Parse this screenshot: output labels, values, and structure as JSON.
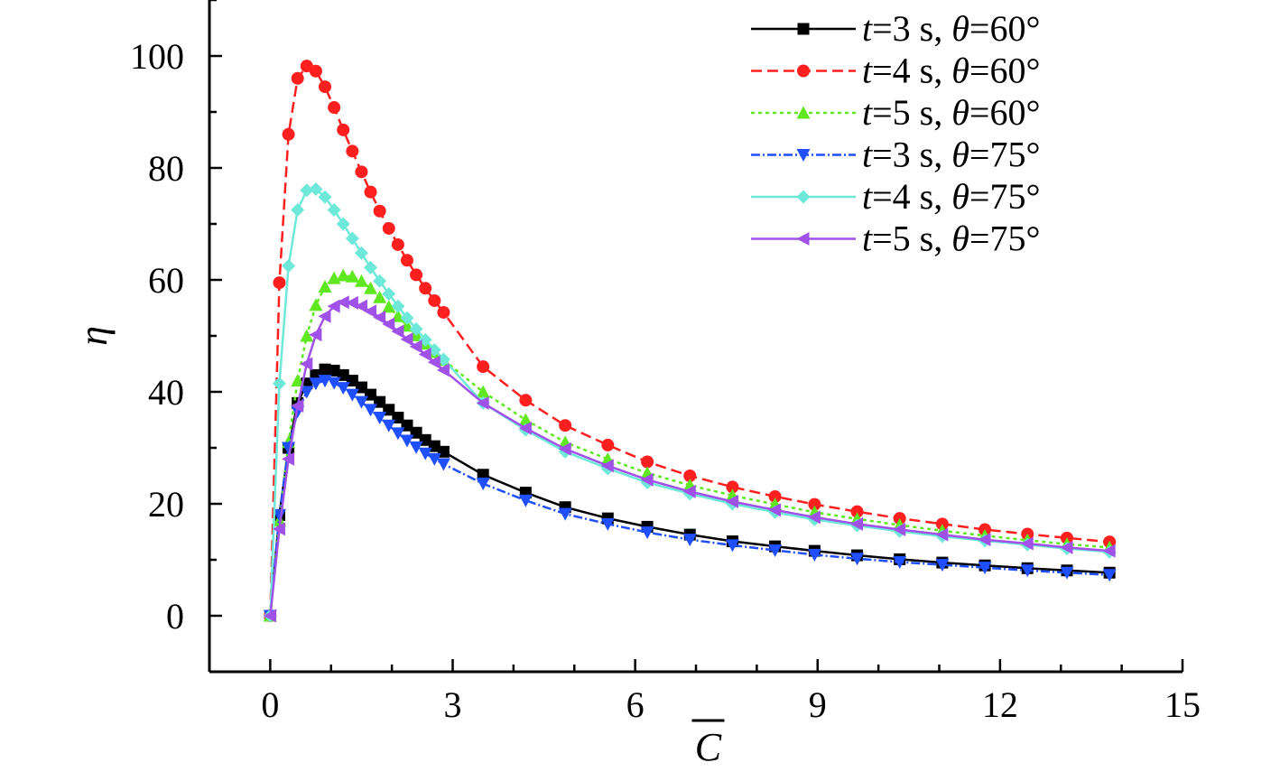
{
  "chart_data": {
    "type": "line",
    "xlabel": "C",
    "ylabel": "η",
    "xlim": [
      -1,
      15
    ],
    "ylim": [
      -10,
      110
    ],
    "x_ticks": [
      0,
      3,
      6,
      9,
      12,
      15
    ],
    "y_ticks": [
      0,
      20,
      40,
      60,
      80,
      100
    ],
    "grid": false,
    "legend_position": "top-right",
    "series": [
      {
        "name": "t=3 s, θ=60°",
        "legend": {
          "v1": "t",
          "eq1": "=3 s, ",
          "v2": "θ",
          "eq2": "=60°"
        },
        "color": "#000000",
        "dash": "",
        "marker": "square",
        "x": [
          0,
          0.15,
          0.3,
          0.45,
          0.6,
          0.75,
          0.9,
          1.05,
          1.2,
          1.35,
          1.5,
          1.65,
          1.8,
          1.95,
          2.1,
          2.25,
          2.4,
          2.55,
          2.7,
          2.85,
          3.5,
          4.2,
          4.85,
          5.55,
          6.2,
          6.9,
          7.6,
          8.3,
          8.95,
          9.65,
          10.35,
          11.05,
          11.75,
          12.45,
          13.1,
          13.8
        ],
        "y": [
          0,
          18,
          30,
          38,
          41.5,
          43,
          44,
          43.8,
          43,
          42,
          40.8,
          39.5,
          38.2,
          36.8,
          35.4,
          34,
          32.7,
          31.4,
          30.3,
          29.3,
          25.2,
          22,
          19.4,
          17.4,
          15.9,
          14.5,
          13.3,
          12.4,
          11.6,
          10.8,
          10.1,
          9.5,
          9,
          8.5,
          8.1,
          7.7
        ]
      },
      {
        "name": "t=4 s, θ=60°",
        "legend": {
          "v1": "t",
          "eq1": "=4 s, ",
          "v2": "θ",
          "eq2": "=60°"
        },
        "color": "#ff1f1f",
        "dash": "12,6",
        "marker": "circle",
        "x": [
          0,
          0.15,
          0.3,
          0.45,
          0.6,
          0.75,
          0.9,
          1.05,
          1.2,
          1.35,
          1.5,
          1.65,
          1.8,
          1.95,
          2.1,
          2.25,
          2.4,
          2.55,
          2.7,
          2.85,
          3.5,
          4.2,
          4.85,
          5.55,
          6.2,
          6.9,
          7.6,
          8.3,
          8.95,
          9.65,
          10.35,
          11.05,
          11.75,
          12.45,
          13.1,
          13.8
        ],
        "y": [
          0,
          59.5,
          86,
          96,
          98.2,
          97.3,
          94.5,
          90.8,
          86.8,
          83,
          79.3,
          75.7,
          72.3,
          69.2,
          66.3,
          63.5,
          60.9,
          58.5,
          56.3,
          54.2,
          44.5,
          38.5,
          34,
          30.5,
          27.5,
          25,
          23,
          21.3,
          19.9,
          18.6,
          17.4,
          16.4,
          15.4,
          14.6,
          13.9,
          13.2
        ]
      },
      {
        "name": "t=5 s, θ=60°",
        "legend": {
          "v1": "t",
          "eq1": "=5 s, ",
          "v2": "θ",
          "eq2": "=60°"
        },
        "color": "#5fe81f",
        "dash": "4,4",
        "marker": "triangle-up",
        "x": [
          0,
          0.15,
          0.3,
          0.45,
          0.6,
          0.75,
          0.9,
          1.05,
          1.2,
          1.35,
          1.5,
          1.65,
          1.8,
          1.95,
          2.1,
          2.25,
          2.4,
          2.55,
          2.7,
          2.85,
          3.5,
          4.2,
          4.85,
          5.55,
          6.2,
          6.9,
          7.6,
          8.3,
          8.95,
          9.65,
          10.35,
          11.05,
          11.75,
          12.45,
          13.1,
          13.8
        ],
        "y": [
          0,
          17,
          31,
          42,
          50,
          55.5,
          58.8,
          60.3,
          60.8,
          60.6,
          59.8,
          58.5,
          56.9,
          55.2,
          53.5,
          51.8,
          50.1,
          48.6,
          47.1,
          45.7,
          40,
          35,
          31,
          28,
          25.5,
          23.3,
          21.5,
          19.9,
          18.5,
          17.3,
          16.2,
          15.2,
          14.3,
          13.5,
          12.8,
          12.2
        ]
      },
      {
        "name": "t=3 s, θ=75°",
        "legend": {
          "v1": "t",
          "eq1": "=3 s, ",
          "v2": "θ",
          "eq2": "=75°"
        },
        "color": "#1f4fff",
        "dash": "10,3,2,3",
        "marker": "triangle-down",
        "x": [
          0,
          0.15,
          0.3,
          0.45,
          0.6,
          0.75,
          0.9,
          1.05,
          1.2,
          1.35,
          1.5,
          1.65,
          1.8,
          1.95,
          2.1,
          2.25,
          2.4,
          2.55,
          2.7,
          2.85,
          3.5,
          4.2,
          4.85,
          5.55,
          6.2,
          6.9,
          7.6,
          8.3,
          8.95,
          9.65,
          10.35,
          11.05,
          11.75,
          12.45,
          13.1,
          13.8
        ],
        "y": [
          0,
          18,
          30,
          36.5,
          40,
          41.5,
          42,
          41.6,
          40.7,
          39.5,
          38.2,
          36.8,
          35.4,
          34,
          32.6,
          31.3,
          30.1,
          29,
          28,
          27.1,
          23.6,
          20.6,
          18.2,
          16.4,
          14.9,
          13.6,
          12.6,
          11.7,
          10.9,
          10.2,
          9.6,
          9.1,
          8.6,
          8.1,
          7.7,
          7.3
        ]
      },
      {
        "name": "t=4 s, θ=75°",
        "legend": {
          "v1": "t",
          "eq1": "=4 s, ",
          "v2": "θ",
          "eq2": "=75°"
        },
        "color": "#6ee8d8",
        "dash": "",
        "marker": "diamond",
        "x": [
          0,
          0.15,
          0.3,
          0.45,
          0.6,
          0.75,
          0.9,
          1.05,
          1.2,
          1.35,
          1.5,
          1.65,
          1.8,
          1.95,
          2.1,
          2.25,
          2.4,
          2.55,
          2.7,
          2.85,
          3.5,
          4.2,
          4.85,
          5.55,
          6.2,
          6.9,
          7.6,
          8.3,
          8.95,
          9.65,
          10.35,
          11.05,
          11.75,
          12.45,
          13.1,
          13.8
        ],
        "y": [
          0,
          41.5,
          62.5,
          72.5,
          76,
          76.2,
          74.8,
          72.5,
          70,
          67.4,
          64.8,
          62.2,
          59.8,
          57.5,
          55.3,
          53.2,
          51.2,
          49.3,
          47.5,
          45.8,
          38,
          33.2,
          29.3,
          26.3,
          23.8,
          21.8,
          20,
          18.5,
          17.2,
          16.1,
          15.1,
          14.2,
          13.4,
          12.7,
          12,
          11.4
        ]
      },
      {
        "name": "t=5 s, θ=75°",
        "legend": {
          "v1": "t",
          "eq1": "=5 s, ",
          "v2": "θ",
          "eq2": "=75°"
        },
        "color": "#a051e8",
        "dash": "",
        "marker": "triangle-left",
        "x": [
          0,
          0.15,
          0.3,
          0.45,
          0.6,
          0.75,
          0.9,
          1.05,
          1.2,
          1.35,
          1.5,
          1.65,
          1.8,
          1.95,
          2.1,
          2.25,
          2.4,
          2.55,
          2.7,
          2.85,
          3.5,
          4.2,
          4.85,
          5.55,
          6.2,
          6.9,
          7.6,
          8.3,
          8.95,
          9.65,
          10.35,
          11.05,
          11.75,
          12.45,
          13.1,
          13.8
        ],
        "y": [
          0,
          15.5,
          28,
          37.5,
          45,
          50.2,
          53.5,
          55.3,
          56,
          55.9,
          55.3,
          54.4,
          53.3,
          52.1,
          50.8,
          49.4,
          48.1,
          46.7,
          45.3,
          43.9,
          38,
          33.5,
          29.8,
          26.8,
          24.3,
          22.2,
          20.4,
          18.9,
          17.6,
          16.4,
          15.4,
          14.5,
          13.6,
          12.9,
          12.2,
          11.6
        ]
      }
    ]
  }
}
